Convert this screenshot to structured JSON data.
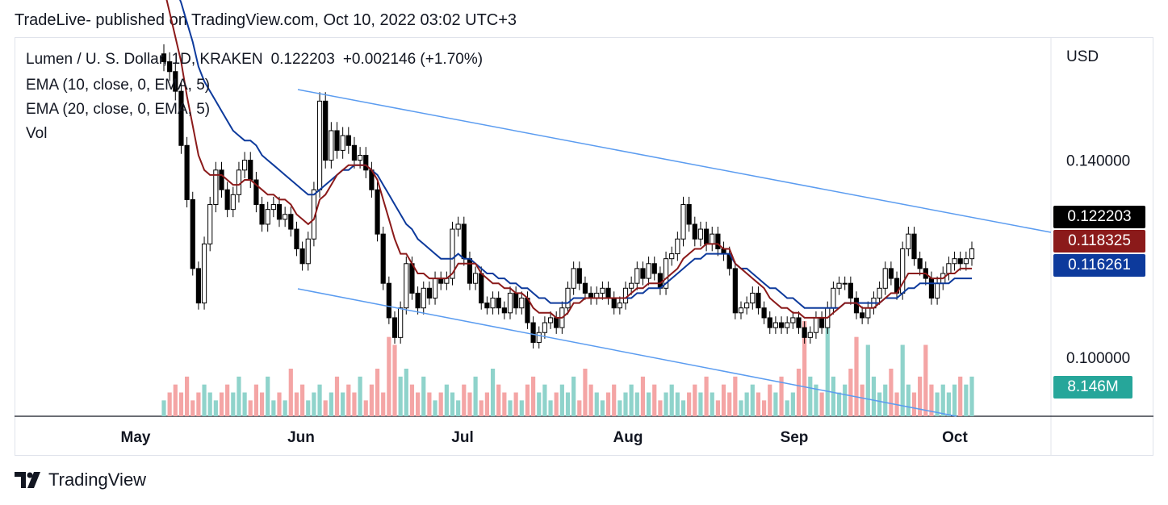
{
  "header": {
    "title": "TradeLive- published on TradingView.com, Oct 10, 2022 03:02 UTC+3"
  },
  "legend": {
    "symbol": "Lumen / U. S. Dollar, 1D, KRAKEN",
    "price": "0.122203",
    "change": "+0.002146 (+1.70%)",
    "ema10": "EMA (10, close, 0, EMA, 5)",
    "ema20": "EMA (20, close, 0, EMA, 5)",
    "vol": "Vol"
  },
  "footer": {
    "brand": "TradingView",
    "logo_icon": "tradingview-logo-icon"
  },
  "price_axis": {
    "currency": "USD"
  },
  "tags": {
    "last_price": {
      "text": "0.122203",
      "color": "#000000"
    },
    "ema10": {
      "text": "0.118325",
      "color": "#8b1a1a"
    },
    "ema20": {
      "text": "0.116261",
      "color": "#0d3a9c"
    },
    "volume": {
      "text": "8.146M",
      "color": "#26a69a"
    }
  },
  "colors": {
    "ema10": "#8b1a1a",
    "ema20": "#0d3a9c",
    "channel": "#5b9cf0",
    "vol_up": "#8fd3cb",
    "vol_down": "#f4a5a5",
    "candle_up_fill": "#ffffff",
    "candle_down_fill": "#000000"
  },
  "chart_data": {
    "type": "candlestick",
    "symbol": "XLM/USD",
    "interval": "1D",
    "y_axis": {
      "ticks": [
        "0.140000",
        "0.100000"
      ],
      "ylim": [
        0.088,
        0.165
      ]
    },
    "x_axis": {
      "ticks": [
        "May",
        "Jun",
        "Jul",
        "Aug",
        "Sep",
        "Oct"
      ]
    },
    "close_series": [
      0.16,
      0.158,
      0.154,
      0.143,
      0.132,
      0.118,
      0.111,
      0.123,
      0.131,
      0.138,
      0.134,
      0.13,
      0.133,
      0.138,
      0.14,
      0.136,
      0.131,
      0.127,
      0.13,
      0.131,
      0.128,
      0.129,
      0.126,
      0.122,
      0.119,
      0.124,
      0.134,
      0.152,
      0.14,
      0.146,
      0.142,
      0.145,
      0.143,
      0.14,
      0.141,
      0.138,
      0.134,
      0.125,
      0.115,
      0.108,
      0.104,
      0.11,
      0.119,
      0.113,
      0.11,
      0.114,
      0.112,
      0.116,
      0.115,
      0.116,
      0.126,
      0.127,
      0.12,
      0.115,
      0.117,
      0.111,
      0.11,
      0.112,
      0.11,
      0.109,
      0.113,
      0.11,
      0.112,
      0.107,
      0.103,
      0.105,
      0.107,
      0.108,
      0.106,
      0.11,
      0.114,
      0.118,
      0.115,
      0.113,
      0.112,
      0.113,
      0.114,
      0.112,
      0.11,
      0.111,
      0.114,
      0.115,
      0.118,
      0.116,
      0.119,
      0.117,
      0.114,
      0.12,
      0.121,
      0.124,
      0.131,
      0.127,
      0.124,
      0.126,
      0.123,
      0.125,
      0.122,
      0.121,
      0.118,
      0.109,
      0.11,
      0.111,
      0.113,
      0.11,
      0.108,
      0.106,
      0.107,
      0.106,
      0.107,
      0.108,
      0.106,
      0.104,
      0.105,
      0.108,
      0.106,
      0.11,
      0.114,
      0.115,
      0.115,
      0.112,
      0.109,
      0.108,
      0.11,
      0.112,
      0.114,
      0.118,
      0.116,
      0.113,
      0.122,
      0.125,
      0.12,
      0.118,
      0.116,
      0.112,
      0.115,
      0.117,
      0.119,
      0.12,
      0.119,
      0.12,
      0.122
    ],
    "ema10_series": [
      0.175,
      0.17,
      0.165,
      0.16,
      0.153,
      0.147,
      0.141,
      0.138,
      0.137,
      0.137,
      0.137,
      0.136,
      0.135,
      0.135,
      0.136,
      0.136,
      0.135,
      0.134,
      0.133,
      0.133,
      0.132,
      0.132,
      0.131,
      0.129,
      0.128,
      0.127,
      0.128,
      0.132,
      0.133,
      0.135,
      0.137,
      0.138,
      0.139,
      0.139,
      0.139,
      0.139,
      0.138,
      0.136,
      0.132,
      0.128,
      0.124,
      0.121,
      0.121,
      0.119,
      0.117,
      0.117,
      0.116,
      0.116,
      0.116,
      0.116,
      0.117,
      0.119,
      0.119,
      0.119,
      0.119,
      0.117,
      0.116,
      0.115,
      0.115,
      0.114,
      0.114,
      0.113,
      0.113,
      0.112,
      0.11,
      0.109,
      0.109,
      0.109,
      0.108,
      0.108,
      0.109,
      0.111,
      0.111,
      0.112,
      0.112,
      0.112,
      0.112,
      0.112,
      0.112,
      0.112,
      0.112,
      0.113,
      0.114,
      0.114,
      0.115,
      0.115,
      0.115,
      0.116,
      0.117,
      0.118,
      0.12,
      0.121,
      0.122,
      0.122,
      0.123,
      0.123,
      0.123,
      0.122,
      0.122,
      0.119,
      0.118,
      0.117,
      0.116,
      0.115,
      0.114,
      0.112,
      0.111,
      0.11,
      0.11,
      0.109,
      0.109,
      0.108,
      0.108,
      0.108,
      0.108,
      0.108,
      0.109,
      0.11,
      0.111,
      0.111,
      0.111,
      0.11,
      0.11,
      0.11,
      0.111,
      0.112,
      0.113,
      0.113,
      0.115,
      0.117,
      0.117,
      0.117,
      0.117,
      0.116,
      0.116,
      0.116,
      0.117,
      0.117,
      0.118,
      0.118,
      0.118
    ],
    "ema20_series": [
      0.18,
      0.178,
      0.175,
      0.172,
      0.168,
      0.164,
      0.159,
      0.156,
      0.154,
      0.152,
      0.15,
      0.148,
      0.146,
      0.145,
      0.144,
      0.144,
      0.143,
      0.141,
      0.14,
      0.139,
      0.138,
      0.137,
      0.136,
      0.135,
      0.134,
      0.133,
      0.133,
      0.134,
      0.135,
      0.136,
      0.137,
      0.138,
      0.138,
      0.139,
      0.139,
      0.139,
      0.138,
      0.137,
      0.135,
      0.133,
      0.131,
      0.129,
      0.127,
      0.126,
      0.124,
      0.123,
      0.122,
      0.121,
      0.12,
      0.12,
      0.12,
      0.121,
      0.12,
      0.12,
      0.119,
      0.118,
      0.117,
      0.117,
      0.116,
      0.116,
      0.115,
      0.115,
      0.114,
      0.114,
      0.113,
      0.112,
      0.112,
      0.111,
      0.111,
      0.111,
      0.111,
      0.112,
      0.112,
      0.112,
      0.112,
      0.112,
      0.112,
      0.112,
      0.112,
      0.112,
      0.112,
      0.112,
      0.113,
      0.113,
      0.114,
      0.114,
      0.114,
      0.115,
      0.116,
      0.117,
      0.118,
      0.119,
      0.12,
      0.12,
      0.121,
      0.121,
      0.121,
      0.121,
      0.121,
      0.119,
      0.118,
      0.118,
      0.117,
      0.116,
      0.115,
      0.114,
      0.114,
      0.113,
      0.112,
      0.112,
      0.111,
      0.11,
      0.11,
      0.11,
      0.11,
      0.11,
      0.11,
      0.11,
      0.111,
      0.111,
      0.111,
      0.111,
      0.111,
      0.111,
      0.111,
      0.112,
      0.112,
      0.112,
      0.113,
      0.114,
      0.114,
      0.115,
      0.115,
      0.115,
      0.115,
      0.115,
      0.115,
      0.116,
      0.116,
      0.116,
      0.116
    ],
    "volume_series": [
      0.2,
      0.3,
      0.4,
      0.3,
      0.5,
      0.2,
      0.3,
      0.4,
      0.3,
      0.2,
      0.3,
      0.4,
      0.3,
      0.5,
      0.3,
      0.2,
      0.4,
      0.3,
      0.5,
      0.2,
      0.3,
      0.2,
      0.6,
      0.3,
      0.4,
      0.2,
      0.3,
      0.4,
      0.2,
      0.3,
      0.5,
      0.3,
      0.4,
      0.3,
      0.5,
      0.2,
      0.4,
      0.6,
      0.3,
      1.0,
      0.9,
      0.5,
      0.6,
      0.4,
      0.3,
      0.5,
      0.3,
      0.2,
      0.3,
      0.4,
      0.3,
      0.2,
      0.4,
      0.3,
      0.5,
      0.2,
      0.3,
      0.6,
      0.4,
      0.3,
      0.2,
      0.3,
      0.2,
      0.4,
      0.5,
      0.3,
      0.4,
      0.2,
      0.3,
      0.4,
      0.3,
      0.5,
      0.2,
      0.6,
      0.4,
      0.3,
      0.2,
      0.3,
      0.4,
      0.2,
      0.3,
      0.4,
      0.3,
      0.5,
      0.3,
      0.4,
      0.2,
      0.3,
      0.4,
      0.3,
      0.2,
      0.3,
      0.4,
      0.3,
      0.5,
      0.3,
      0.2,
      0.4,
      0.3,
      0.5,
      0.2,
      0.3,
      0.4,
      0.3,
      0.2,
      0.4,
      0.3,
      0.5,
      0.2,
      0.3,
      0.6,
      1.2,
      0.5,
      0.4,
      0.3,
      1.2,
      0.5,
      0.3,
      0.4,
      0.6,
      1.0,
      0.4,
      0.9,
      0.5,
      0.3,
      0.4,
      0.6,
      0.3,
      0.9,
      0.4,
      0.3,
      0.5,
      0.9,
      0.4,
      0.3,
      0.4,
      0.3,
      0.4,
      0.5,
      0.4,
      0.5
    ]
  }
}
